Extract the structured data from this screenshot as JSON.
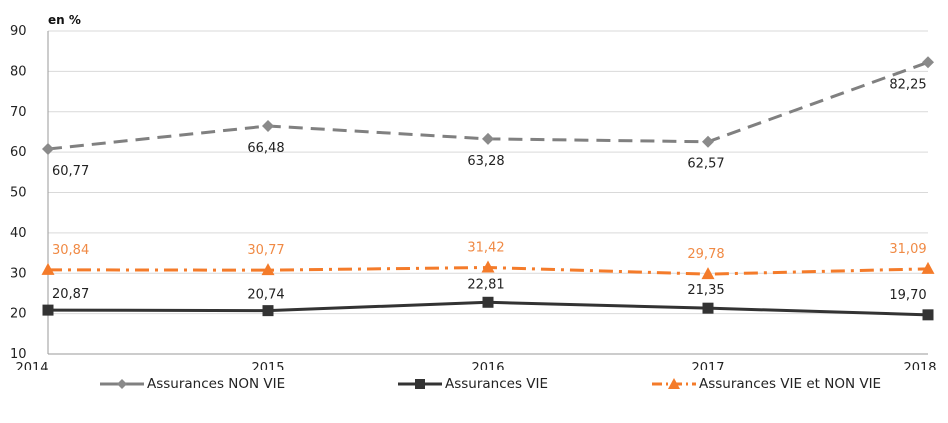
{
  "chart_data": {
    "type": "line",
    "unit_label": "en %",
    "categories": [
      "2014",
      "2015",
      "2016",
      "2017",
      "2018"
    ],
    "ylim": [
      10,
      90
    ],
    "yticks": [
      10,
      20,
      30,
      40,
      50,
      60,
      70,
      80,
      90
    ],
    "grid": true,
    "legend_position": "bottom",
    "series": [
      {
        "name": "Assurances NON VIE",
        "values": [
          60.77,
          66.48,
          63.28,
          62.57,
          82.25
        ],
        "labels": [
          "60,77",
          "66,48",
          "63,28",
          "62,57",
          "82,25"
        ],
        "color": "#808080",
        "style": "dashed",
        "marker": "diamond",
        "label_color": "#222222"
      },
      {
        "name": "Assurances VIE",
        "values": [
          20.87,
          20.74,
          22.81,
          21.35,
          19.7
        ],
        "labels": [
          "20,87",
          "20,74",
          "22,81",
          "21,35",
          "19,70"
        ],
        "color": "#333333",
        "style": "solid",
        "marker": "square",
        "label_color": "#222222"
      },
      {
        "name": "Assurances VIE et NON VIE",
        "values": [
          30.84,
          30.77,
          31.42,
          29.78,
          31.09
        ],
        "labels": [
          "30,84",
          "30,77",
          "31,42",
          "29,78",
          "31,09"
        ],
        "color": "#F47B2A",
        "style": "dashdot",
        "marker": "triangle",
        "label_color": "#F08A45"
      }
    ]
  }
}
